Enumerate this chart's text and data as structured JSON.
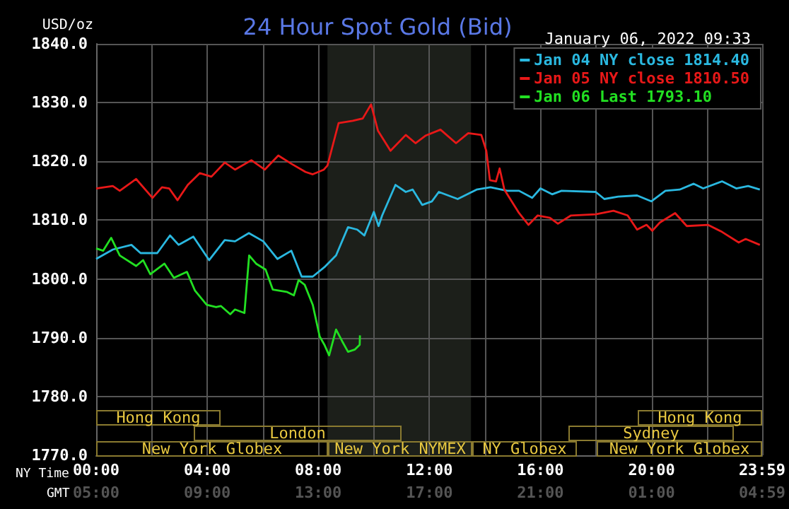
{
  "chart_data": {
    "type": "line",
    "title": "24 Hour Spot Gold (Bid)",
    "subtitle": "January 06, 2022 09:33",
    "ylabel": "USD/oz",
    "xlabel": "NY Time",
    "x2label": "GMT",
    "series": [
      {
        "name": "Jan 04 NY close 1814.40",
        "color": "#2ab8e0",
        "x": [
          0,
          0.6,
          1.27,
          1.6,
          2.2,
          2.66,
          2.97,
          3.5,
          4.07,
          4.63,
          5,
          5.5,
          6.02,
          6.53,
          7.03,
          7.4,
          7.8,
          8.22,
          8.64,
          9.07,
          9.4,
          9.66,
          10,
          10.17,
          10.3,
          10.78,
          11.15,
          11.4,
          11.74,
          12.09,
          12.34,
          13.02,
          13.7,
          14.2,
          14.8,
          15.23,
          15.7,
          16,
          16.42,
          16.76,
          17.99,
          18.3,
          18.8,
          19.48,
          19.99,
          20.5,
          21.01,
          21.52,
          21.86,
          22.54,
          23.05,
          23.48,
          23.9
        ],
        "values": [
          1803.4,
          1805,
          1805.8,
          1804.4,
          1804.4,
          1807.4,
          1805.8,
          1807.2,
          1803.2,
          1806.6,
          1806.4,
          1807.8,
          1806.4,
          1803.4,
          1804.8,
          1800.4,
          1800.4,
          1802,
          1804,
          1808.8,
          1808.4,
          1807.4,
          1811.4,
          1809,
          1810.8,
          1816,
          1814.8,
          1815.2,
          1812.6,
          1813.2,
          1814.8,
          1813.6,
          1815.2,
          1815.6,
          1815,
          1815,
          1813.8,
          1815.4,
          1814.4,
          1815,
          1814.8,
          1813.6,
          1814,
          1814.2,
          1813.2,
          1815,
          1815.2,
          1816.2,
          1815.4,
          1816.6,
          1815.4,
          1815.8,
          1815.2
        ]
      },
      {
        "name": "Jan 05 NY close 1810.50",
        "color": "#e81818",
        "x": [
          0,
          0.6,
          0.85,
          1.44,
          2.03,
          2.37,
          2.63,
          2.93,
          3.3,
          3.73,
          4.15,
          4.63,
          5,
          5.59,
          6.07,
          6.56,
          7.03,
          7.54,
          7.8,
          8.2,
          8.33,
          8.73,
          9.24,
          9.6,
          9.9,
          10.15,
          10.6,
          11.15,
          11.5,
          11.87,
          12.4,
          12.96,
          13.4,
          13.87,
          14.05,
          14.18,
          14.4,
          14.53,
          14.7,
          15.23,
          15.57,
          15.9,
          16.34,
          16.63,
          17.1,
          17.99,
          18.63,
          19.14,
          19.48,
          19.82,
          20.03,
          20.3,
          20.85,
          21.27,
          22.03,
          22.54,
          23.14,
          23.39,
          23.9
        ],
        "values": [
          1815.4,
          1815.8,
          1815,
          1817,
          1813.8,
          1815.6,
          1815.4,
          1813.4,
          1816,
          1818,
          1817.4,
          1819.8,
          1818.6,
          1820.2,
          1818.6,
          1821,
          1819.6,
          1818.2,
          1817.8,
          1818.6,
          1819.3,
          1826.5,
          1826.9,
          1827.3,
          1829.7,
          1825.2,
          1821.8,
          1824.5,
          1823.1,
          1824.4,
          1825.4,
          1823.1,
          1824.8,
          1824.5,
          1821.8,
          1816.8,
          1816.6,
          1818.8,
          1815.2,
          1811.2,
          1809.2,
          1810.8,
          1810.4,
          1809.4,
          1810.8,
          1811,
          1811.6,
          1810.8,
          1808.4,
          1809.2,
          1808.2,
          1809.6,
          1811.2,
          1809,
          1809.2,
          1808,
          1806.2,
          1806.8,
          1805.8
        ]
      },
      {
        "name": "Jan 06 Last 1793.10",
        "color": "#22e022",
        "x": [
          0,
          0.25,
          0.54,
          0.85,
          1.44,
          1.69,
          1.95,
          2.46,
          2.8,
          3.27,
          3.56,
          3.98,
          4.32,
          4.49,
          4.83,
          5,
          5.34,
          5.51,
          5.76,
          6.1,
          6.36,
          6.86,
          7.12,
          7.29,
          7.51,
          7.8,
          8.05,
          8.22,
          8.39,
          8.64,
          8.86,
          9.07,
          9.32,
          9.49,
          9.5
        ],
        "values": [
          1805.2,
          1804.8,
          1807,
          1804,
          1802.2,
          1803.2,
          1800.8,
          1802.6,
          1800.2,
          1801.2,
          1798,
          1795.6,
          1795.2,
          1795.4,
          1794,
          1794.8,
          1794.2,
          1804,
          1802.6,
          1801.6,
          1798.2,
          1797.8,
          1797.2,
          1799.8,
          1799,
          1795.6,
          1790.2,
          1788.8,
          1787,
          1791.4,
          1789.4,
          1787.6,
          1788,
          1788.8,
          1790.4
        ]
      }
    ],
    "xlim": [
      0,
      23.983
    ],
    "xticks": [
      {
        "value": 0,
        "label": "00:00"
      },
      {
        "value": 2,
        "label": null
      },
      {
        "value": 4,
        "label": "04:00"
      },
      {
        "value": 6,
        "label": null
      },
      {
        "value": 8,
        "label": "08:00"
      },
      {
        "value": 10,
        "label": null
      },
      {
        "value": 12,
        "label": "12:00"
      },
      {
        "value": 14,
        "label": null
      },
      {
        "value": 16,
        "label": "16:00"
      },
      {
        "value": 18,
        "label": null
      },
      {
        "value": 20,
        "label": "20:00"
      },
      {
        "value": 22,
        "label": null
      },
      {
        "value": 23.983,
        "label": "23:59"
      }
    ],
    "x2lim": [
      "2022-01-06T05:00",
      "2022-01-07T04:59"
    ],
    "x2ticks": [
      {
        "value": "2022-01-06T05:00",
        "label": "05:00"
      },
      {
        "value": "2022-01-06T09:00",
        "label": "09:00"
      },
      {
        "value": "2022-01-06T13:00",
        "label": "13:00"
      },
      {
        "value": "2022-01-06T17:00",
        "label": "17:00"
      },
      {
        "value": "2022-01-06T21:00",
        "label": "21:00"
      },
      {
        "value": "2022-01-07T01:00",
        "label": "01:00"
      },
      {
        "value": "2022-01-07T04:59",
        "label": "04:59"
      }
    ],
    "ylim": [
      1770,
      1840
    ],
    "yticks": [
      {
        "value": 1770,
        "label": "1770.0"
      },
      {
        "value": 1780,
        "label": "1780.0"
      },
      {
        "value": 1790,
        "label": "1790.0"
      },
      {
        "value": 1800,
        "label": "1800.0"
      },
      {
        "value": 1810,
        "label": "1810.0"
      },
      {
        "value": 1820,
        "label": "1820.0"
      },
      {
        "value": 1830,
        "label": "1830.0"
      },
      {
        "value": 1840,
        "label": "1840.0"
      }
    ],
    "bands": [
      {
        "axis": "x",
        "from": 8.33,
        "to": 13.5,
        "color": "#1c1f1a"
      }
    ],
    "annotations": [
      "Hong Kong",
      "Hong Kong",
      "London",
      "Sydney",
      "New York Globex",
      "New York NYMEX",
      "NY Globex",
      "New York Globex"
    ],
    "grid": true,
    "legend": "top right",
    "marker": "none",
    "line_style": "solid"
  }
}
